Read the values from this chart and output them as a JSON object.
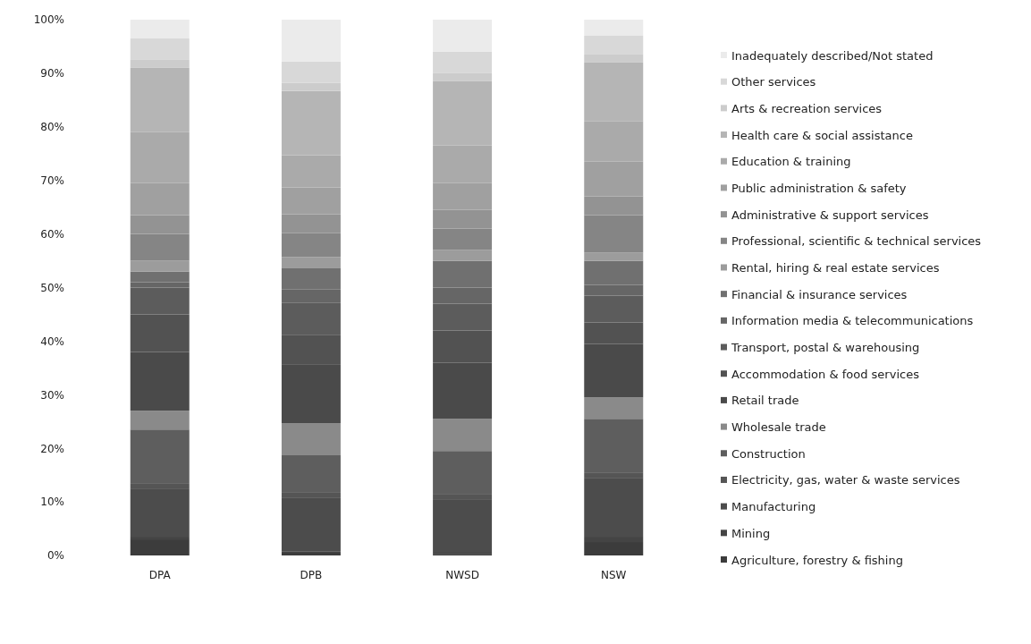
{
  "chart_data": {
    "type": "bar",
    "stacked": true,
    "categories": [
      "DPA",
      "DPB",
      "NWSD",
      "NSW"
    ],
    "ylim": [
      0,
      100
    ],
    "yticks": [
      {
        "value": 0,
        "label": "0%"
      },
      {
        "value": 10,
        "label": "10%"
      },
      {
        "value": 20,
        "label": "20%"
      },
      {
        "value": 30,
        "label": "30%"
      },
      {
        "value": 40,
        "label": "40%"
      },
      {
        "value": 50,
        "label": "50%"
      },
      {
        "value": 60,
        "label": "60%"
      },
      {
        "value": 70,
        "label": "70%"
      },
      {
        "value": 80,
        "label": "80%"
      },
      {
        "value": 90,
        "label": "90%"
      },
      {
        "value": 100,
        "label": "100%"
      }
    ],
    "legend": "right",
    "series": [
      {
        "name": "Agriculture, forestry & fishing",
        "color": "#3c3c3c",
        "values": [
          3,
          0.5,
          0.3,
          2.5
        ]
      },
      {
        "name": "Mining",
        "color": "#444444",
        "values": [
          0.5,
          0.2,
          0.2,
          1
        ]
      },
      {
        "name": "Manufacturing",
        "color": "#4c4c4c",
        "values": [
          9,
          10,
          10,
          11
        ]
      },
      {
        "name": "Electricity, gas, water & waste services",
        "color": "#555555",
        "values": [
          1,
          1,
          1,
          1
        ]
      },
      {
        "name": "Construction",
        "color": "#5e5e5e",
        "values": [
          10,
          7,
          8,
          10
        ]
      },
      {
        "name": "Wholesale trade",
        "color": "#8a8a8a",
        "values": [
          3.5,
          6,
          6,
          4
        ]
      },
      {
        "name": "Retail trade",
        "color": "#4a4a4a",
        "values": [
          11,
          11,
          10.5,
          10
        ]
      },
      {
        "name": "Accommodation & food services",
        "color": "#525252",
        "values": [
          7,
          5.5,
          6,
          4
        ]
      },
      {
        "name": "Transport, postal & warehousing",
        "color": "#5c5c5c",
        "values": [
          5,
          6,
          5,
          5
        ]
      },
      {
        "name": "Information media & telecommunications",
        "color": "#666666",
        "values": [
          1,
          2.5,
          3,
          2
        ]
      },
      {
        "name": "Financial & insurance services",
        "color": "#707070",
        "values": [
          2,
          4,
          5,
          4.5
        ]
      },
      {
        "name": "Rental, hiring & real estate services",
        "color": "#9c9c9c",
        "values": [
          2,
          2,
          2,
          1.5
        ]
      },
      {
        "name": "Professional, scientific & technical services",
        "color": "#858585",
        "values": [
          5,
          4.5,
          4,
          7
        ]
      },
      {
        "name": "Administrative & support services",
        "color": "#939393",
        "values": [
          3.5,
          3.5,
          3.5,
          3.5
        ]
      },
      {
        "name": "Public administration & safety",
        "color": "#a0a0a0",
        "values": [
          6,
          5,
          5,
          6.5
        ]
      },
      {
        "name": "Education & training",
        "color": "#aaaaaa",
        "values": [
          9.5,
          6,
          7,
          7.5
        ]
      },
      {
        "name": "Health care & social assistance",
        "color": "#b5b5b5",
        "values": [
          12,
          12,
          12,
          11
        ]
      },
      {
        "name": "Arts & recreation services",
        "color": "#cccccc",
        "values": [
          1.5,
          1.5,
          1.5,
          1.5
        ]
      },
      {
        "name": "Other services",
        "color": "#d8d8d8",
        "values": [
          4,
          4,
          4,
          3.5
        ]
      },
      {
        "name": "Inadequately described/Not stated",
        "color": "#ebebeb",
        "values": [
          3.5,
          7.8,
          6,
          3
        ]
      }
    ]
  }
}
